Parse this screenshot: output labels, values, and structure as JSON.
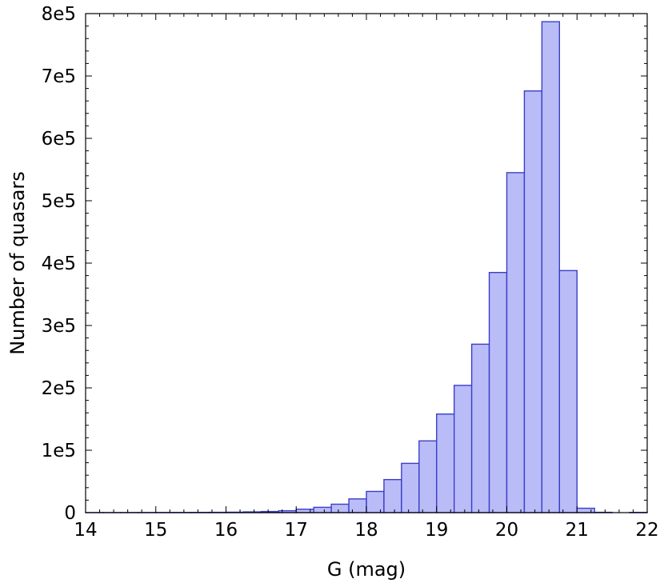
{
  "chart_data": {
    "type": "bar",
    "title": "",
    "xlabel": "G (mag)",
    "ylabel": "Number of quasars",
    "xlim": [
      14,
      22
    ],
    "ylim": [
      0,
      800000
    ],
    "bin_width": 0.25,
    "x_ticks": [
      14,
      15,
      16,
      17,
      18,
      19,
      20,
      21,
      22
    ],
    "x_tick_labels": [
      "14",
      "15",
      "16",
      "17",
      "18",
      "19",
      "20",
      "21",
      "22"
    ],
    "y_ticks": [
      0,
      100000,
      200000,
      300000,
      400000,
      500000,
      600000,
      700000,
      800000
    ],
    "y_tick_labels": [
      "0",
      "1e5",
      "2e5",
      "3e5",
      "4e5",
      "5e5",
      "6e5",
      "7e5",
      "8e5"
    ],
    "bins": [
      {
        "x_start": 14.0,
        "x_end": 14.25,
        "value": 100
      },
      {
        "x_start": 14.25,
        "x_end": 14.5,
        "value": 100
      },
      {
        "x_start": 14.5,
        "x_end": 14.75,
        "value": 150
      },
      {
        "x_start": 14.75,
        "x_end": 15.0,
        "value": 200
      },
      {
        "x_start": 15.0,
        "x_end": 15.25,
        "value": 250
      },
      {
        "x_start": 15.25,
        "x_end": 15.5,
        "value": 300
      },
      {
        "x_start": 15.5,
        "x_end": 15.75,
        "value": 400
      },
      {
        "x_start": 15.75,
        "x_end": 16.0,
        "value": 500
      },
      {
        "x_start": 16.0,
        "x_end": 16.25,
        "value": 700
      },
      {
        "x_start": 16.25,
        "x_end": 16.5,
        "value": 1200
      },
      {
        "x_start": 16.5,
        "x_end": 16.75,
        "value": 1800
      },
      {
        "x_start": 16.75,
        "x_end": 17.0,
        "value": 3000
      },
      {
        "x_start": 17.0,
        "x_end": 17.25,
        "value": 5500
      },
      {
        "x_start": 17.25,
        "x_end": 17.5,
        "value": 8500
      },
      {
        "x_start": 17.5,
        "x_end": 17.75,
        "value": 13500
      },
      {
        "x_start": 17.75,
        "x_end": 18.0,
        "value": 22000
      },
      {
        "x_start": 18.0,
        "x_end": 18.25,
        "value": 34000
      },
      {
        "x_start": 18.25,
        "x_end": 18.5,
        "value": 53000
      },
      {
        "x_start": 18.5,
        "x_end": 18.75,
        "value": 79000
      },
      {
        "x_start": 18.75,
        "x_end": 19.0,
        "value": 115000
      },
      {
        "x_start": 19.0,
        "x_end": 19.25,
        "value": 158000
      },
      {
        "x_start": 19.25,
        "x_end": 19.5,
        "value": 204000
      },
      {
        "x_start": 19.5,
        "x_end": 19.75,
        "value": 270000
      },
      {
        "x_start": 19.75,
        "x_end": 20.0,
        "value": 385000
      },
      {
        "x_start": 20.0,
        "x_end": 20.25,
        "value": 545000
      },
      {
        "x_start": 20.25,
        "x_end": 20.5,
        "value": 676000
      },
      {
        "x_start": 20.5,
        "x_end": 20.75,
        "value": 787000
      },
      {
        "x_start": 20.75,
        "x_end": 21.0,
        "value": 388000
      },
      {
        "x_start": 21.0,
        "x_end": 21.25,
        "value": 7000
      },
      {
        "x_start": 21.25,
        "x_end": 21.5,
        "value": 500
      },
      {
        "x_start": 21.75,
        "x_end": 22.0,
        "value": 400
      }
    ],
    "grid": false,
    "legend": "none",
    "colors": {
      "bar_fill": "#babcf8",
      "bar_edge": "#3a3fc6"
    }
  }
}
